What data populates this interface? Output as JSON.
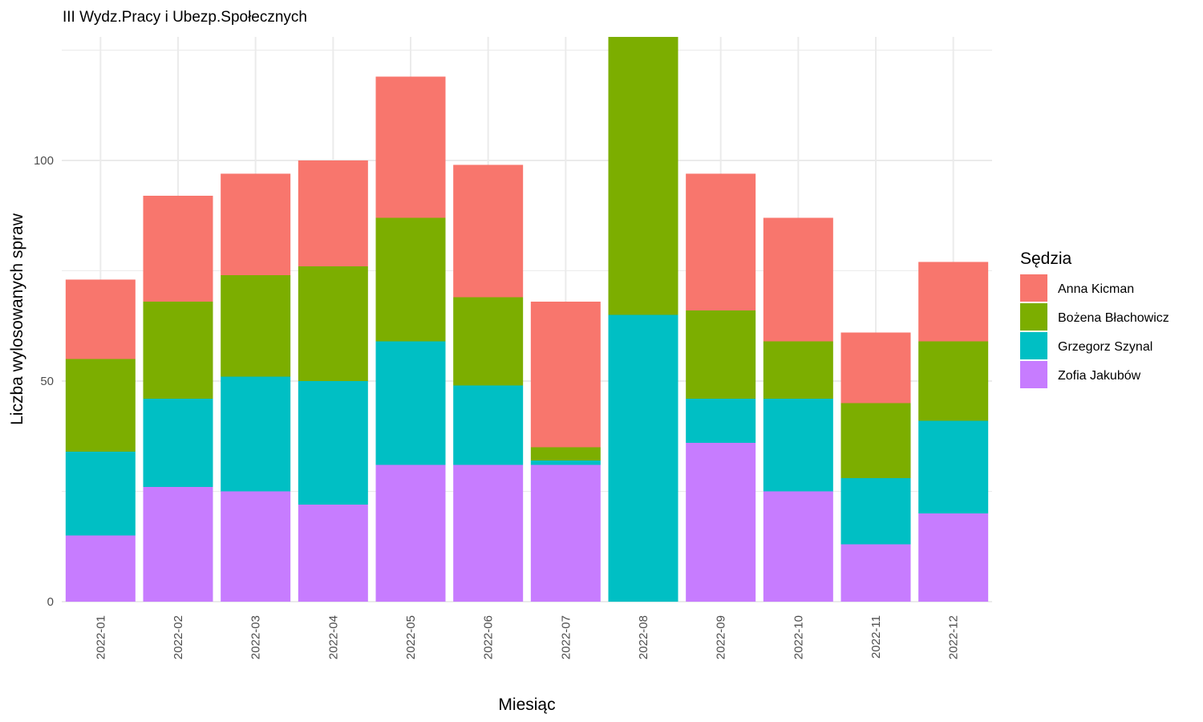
{
  "chart_data": {
    "type": "bar",
    "stacked": true,
    "title": "III Wydz.Pracy i Ubezp.Społecznych",
    "xlabel": "Miesiąc",
    "ylabel": "Liczba wylosowanych spraw",
    "ylim": [
      0,
      128
    ],
    "yticks": [
      0,
      50,
      100
    ],
    "grid": true,
    "legend_title": "Sędzia",
    "legend_position": "right",
    "categories": [
      "2022-01",
      "2022-02",
      "2022-03",
      "2022-04",
      "2022-05",
      "2022-06",
      "2022-07",
      "2022-08",
      "2022-09",
      "2022-10",
      "2022-11",
      "2022-12"
    ],
    "series": [
      {
        "name": "Zofia Jakubów",
        "color": "#C77CFF",
        "values": [
          15,
          26,
          25,
          22,
          31,
          31,
          31,
          0,
          36,
          25,
          13,
          20
        ]
      },
      {
        "name": "Grzegorz Szynal",
        "color": "#00BFC4",
        "values": [
          19,
          20,
          26,
          28,
          28,
          18,
          1,
          65,
          10,
          21,
          15,
          21
        ]
      },
      {
        "name": "Bożena Błachowicz",
        "color": "#7CAE00",
        "values": [
          21,
          22,
          23,
          26,
          28,
          20,
          3,
          63,
          20,
          13,
          17,
          18
        ]
      },
      {
        "name": "Anna Kicman",
        "color": "#F8766D",
        "values": [
          18,
          24,
          23,
          24,
          32,
          30,
          33,
          0,
          31,
          28,
          16,
          18
        ]
      }
    ],
    "legend_order": [
      "Anna Kicman",
      "Bożena Błachowicz",
      "Grzegorz Szynal",
      "Zofia Jakubów"
    ]
  }
}
